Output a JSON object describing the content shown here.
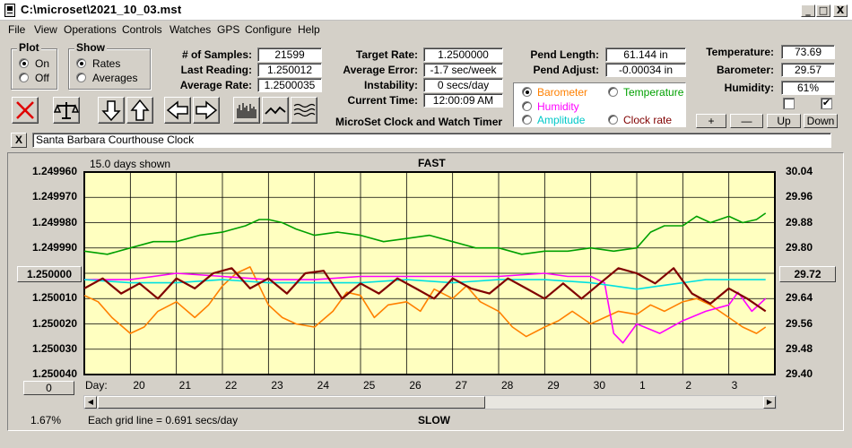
{
  "window": {
    "title": "C:\\microset\\2021_10_03.mst",
    "controls": [
      "_",
      "□",
      "X"
    ]
  },
  "menu": [
    "File",
    "View",
    "Operations",
    "Controls",
    "Watches",
    "GPS",
    "Configure",
    "Help"
  ],
  "plot_group": {
    "label": "Plot",
    "on_label": "On",
    "off_label": "Off",
    "selected": "On"
  },
  "show_group": {
    "label": "Show",
    "rates_label": "Rates",
    "averages_label": "Averages",
    "selected": "Rates"
  },
  "stats": {
    "samples_label": "# of Samples:",
    "samples_value": "21599",
    "last_reading_label": "Last Reading:",
    "last_reading_value": "1.250012",
    "average_rate_label": "Average Rate:",
    "average_rate_value": "1.2500035",
    "target_rate_label": "Target Rate:",
    "target_rate_value": "1.2500000",
    "average_error_label": "Average Error:",
    "average_error_value": "-1.7 sec/week",
    "instability_label": "Instability:",
    "instability_value": "0 secs/day",
    "current_time_label": "Current Time:",
    "current_time_value": "12:00:09 AM",
    "pend_length_label": "Pend Length:",
    "pend_length_value": "61.144 in",
    "pend_adjust_label": "Pend Adjust:",
    "pend_adjust_value": "-0.00034 in",
    "temperature_label": "Temperature:",
    "temperature_value": "73.69",
    "barometer_label": "Barometer:",
    "barometer_value": "29.57",
    "humidity_label": "Humidity:",
    "humidity_value": "61%"
  },
  "app_subtitle": "MicroSet Clock and Watch Timer",
  "legend": {
    "selected": "Barometer",
    "items": [
      {
        "label": "Barometer",
        "color": "#ff8000"
      },
      {
        "label": "Temperature",
        "color": "#00a000"
      },
      {
        "label": "Humidity",
        "color": "#ff00ff"
      },
      {
        "label": "Amplitude",
        "color": "#00e0e0"
      },
      {
        "label": "Clock rate",
        "color": "#800000"
      }
    ]
  },
  "right_buttons": {
    "plus": "+",
    "minus": "—",
    "up": "Up",
    "down": "Down"
  },
  "checkboxes": [
    false,
    true
  ],
  "watch_name": "Santa Barbara Courthouse Clock",
  "close_label": "X",
  "chart_data": {
    "type": "line",
    "top_label": "FAST",
    "bottom_label": "SLOW",
    "days_shown": "15.0 days shown",
    "grid_note": "Each grid line = 0.691 secs/day",
    "zoom_text": "1.67%",
    "left_axis": {
      "ticks": [
        "1.249960",
        "1.249970",
        "1.249980",
        "1.249990",
        "1.250000",
        "1.250010",
        "1.250020",
        "1.250030",
        "1.250040"
      ],
      "ylim": [
        1.24996,
        1.25004
      ],
      "reverse": true,
      "button_value": "1.250000",
      "bottom_button": "0"
    },
    "right_axis": {
      "ticks": [
        "30.04",
        "29.96",
        "29.88",
        "29.80",
        "29.72",
        "29.64",
        "29.56",
        "29.48",
        "29.40"
      ],
      "ylim": [
        29.4,
        30.04
      ],
      "button_value": "29.72"
    },
    "x_label": "Day:",
    "x_ticks": [
      "20",
      "21",
      "22",
      "23",
      "24",
      "25",
      "26",
      "27",
      "28",
      "29",
      "30",
      "1",
      "2",
      "3"
    ],
    "xlim": [
      19.0,
      34.0
    ],
    "series": [
      {
        "name": "Temperature",
        "axis": "right",
        "color": "#00a000",
        "x": [
          19.0,
          19.5,
          20.0,
          20.5,
          21.0,
          21.5,
          22.0,
          22.5,
          22.8,
          23.0,
          23.3,
          23.6,
          24.0,
          24.5,
          25.0,
          25.5,
          26.0,
          26.5,
          27.0,
          27.5,
          28.0,
          28.5,
          29.0,
          29.5,
          30.0,
          30.5,
          31.0,
          31.3,
          31.6,
          32.0,
          32.3,
          32.6,
          33.0,
          33.3,
          33.6,
          33.8
        ],
        "y": [
          29.79,
          29.78,
          29.8,
          29.82,
          29.82,
          29.84,
          29.85,
          29.87,
          29.89,
          29.89,
          29.88,
          29.86,
          29.84,
          29.85,
          29.84,
          29.82,
          29.83,
          29.84,
          29.82,
          29.8,
          29.8,
          29.78,
          29.79,
          29.79,
          29.8,
          29.79,
          29.8,
          29.85,
          29.87,
          29.87,
          29.9,
          29.88,
          29.9,
          29.88,
          29.89,
          29.91
        ]
      },
      {
        "name": "Barometer",
        "axis": "right",
        "color": "#ff8000",
        "x": [
          19.0,
          19.3,
          19.6,
          20.0,
          20.3,
          20.6,
          21.0,
          21.4,
          21.7,
          22.0,
          22.3,
          22.6,
          23.0,
          23.3,
          23.6,
          24.0,
          24.4,
          24.7,
          25.0,
          25.3,
          25.6,
          26.0,
          26.3,
          26.6,
          27.0,
          27.3,
          27.6,
          28.0,
          28.3,
          28.6,
          29.0,
          29.3,
          29.6,
          30.0,
          30.3,
          30.6,
          31.0,
          31.3,
          31.6,
          32.0,
          32.3,
          32.6,
          33.0,
          33.3,
          33.6,
          33.8
        ],
        "y": [
          29.65,
          29.63,
          29.58,
          29.53,
          29.55,
          29.6,
          29.63,
          29.58,
          29.62,
          29.68,
          29.72,
          29.74,
          29.62,
          29.58,
          29.56,
          29.55,
          29.6,
          29.66,
          29.65,
          29.58,
          29.62,
          29.63,
          29.6,
          29.67,
          29.64,
          29.68,
          29.63,
          29.6,
          29.55,
          29.52,
          29.55,
          29.57,
          29.6,
          29.56,
          29.58,
          29.6,
          29.59,
          29.62,
          29.6,
          29.63,
          29.64,
          29.62,
          29.58,
          29.55,
          29.53,
          29.55
        ]
      },
      {
        "name": "Humidity",
        "axis": "right",
        "color": "#ff00ff",
        "x": [
          19.0,
          20.0,
          21.0,
          22.0,
          23.0,
          24.0,
          25.0,
          26.0,
          27.0,
          28.0,
          29.0,
          29.5,
          30.0,
          30.3,
          30.5,
          30.7,
          31.0,
          31.5,
          32.0,
          32.5,
          33.0,
          33.2,
          33.5,
          33.8
        ],
        "y": [
          29.7,
          29.7,
          29.72,
          29.71,
          29.7,
          29.7,
          29.71,
          29.71,
          29.71,
          29.71,
          29.72,
          29.71,
          29.71,
          29.69,
          29.53,
          29.5,
          29.56,
          29.53,
          29.57,
          29.6,
          29.62,
          29.66,
          29.6,
          29.64
        ]
      },
      {
        "name": "Amplitude",
        "axis": "right",
        "color": "#00e0e0",
        "x": [
          19.0,
          20.0,
          21.0,
          22.0,
          23.0,
          24.0,
          25.0,
          26.0,
          27.0,
          28.0,
          29.0,
          30.0,
          30.5,
          31.0,
          31.5,
          32.0,
          32.5,
          33.0,
          33.8
        ],
        "y": [
          29.7,
          29.69,
          29.69,
          29.7,
          29.69,
          29.69,
          29.69,
          29.7,
          29.69,
          29.7,
          29.7,
          29.69,
          29.68,
          29.67,
          29.68,
          29.69,
          29.7,
          29.7,
          29.7
        ]
      },
      {
        "name": "Clock rate",
        "axis": "left",
        "color": "#800000",
        "x": [
          19.0,
          19.4,
          19.8,
          20.2,
          20.6,
          21.0,
          21.4,
          21.8,
          22.2,
          22.6,
          23.0,
          23.4,
          23.8,
          24.2,
          24.6,
          25.0,
          25.4,
          25.8,
          26.2,
          26.6,
          27.0,
          27.4,
          27.8,
          28.2,
          28.6,
          29.0,
          29.4,
          29.8,
          30.2,
          30.6,
          31.0,
          31.4,
          31.8,
          32.2,
          32.6,
          33.0,
          33.4,
          33.8
        ],
        "y": [
          1.250006,
          1.250002,
          1.250008,
          1.250004,
          1.25001,
          1.250002,
          1.250006,
          1.25,
          1.249998,
          1.250006,
          1.250002,
          1.250008,
          1.25,
          1.249999,
          1.25001,
          1.250004,
          1.250008,
          1.250002,
          1.250006,
          1.25001,
          1.250002,
          1.250006,
          1.250008,
          1.250002,
          1.250006,
          1.25001,
          1.250004,
          1.25001,
          1.250004,
          1.249998,
          1.25,
          1.250004,
          1.249998,
          1.250008,
          1.250012,
          1.250006,
          1.25001,
          1.250015
        ]
      }
    ]
  }
}
